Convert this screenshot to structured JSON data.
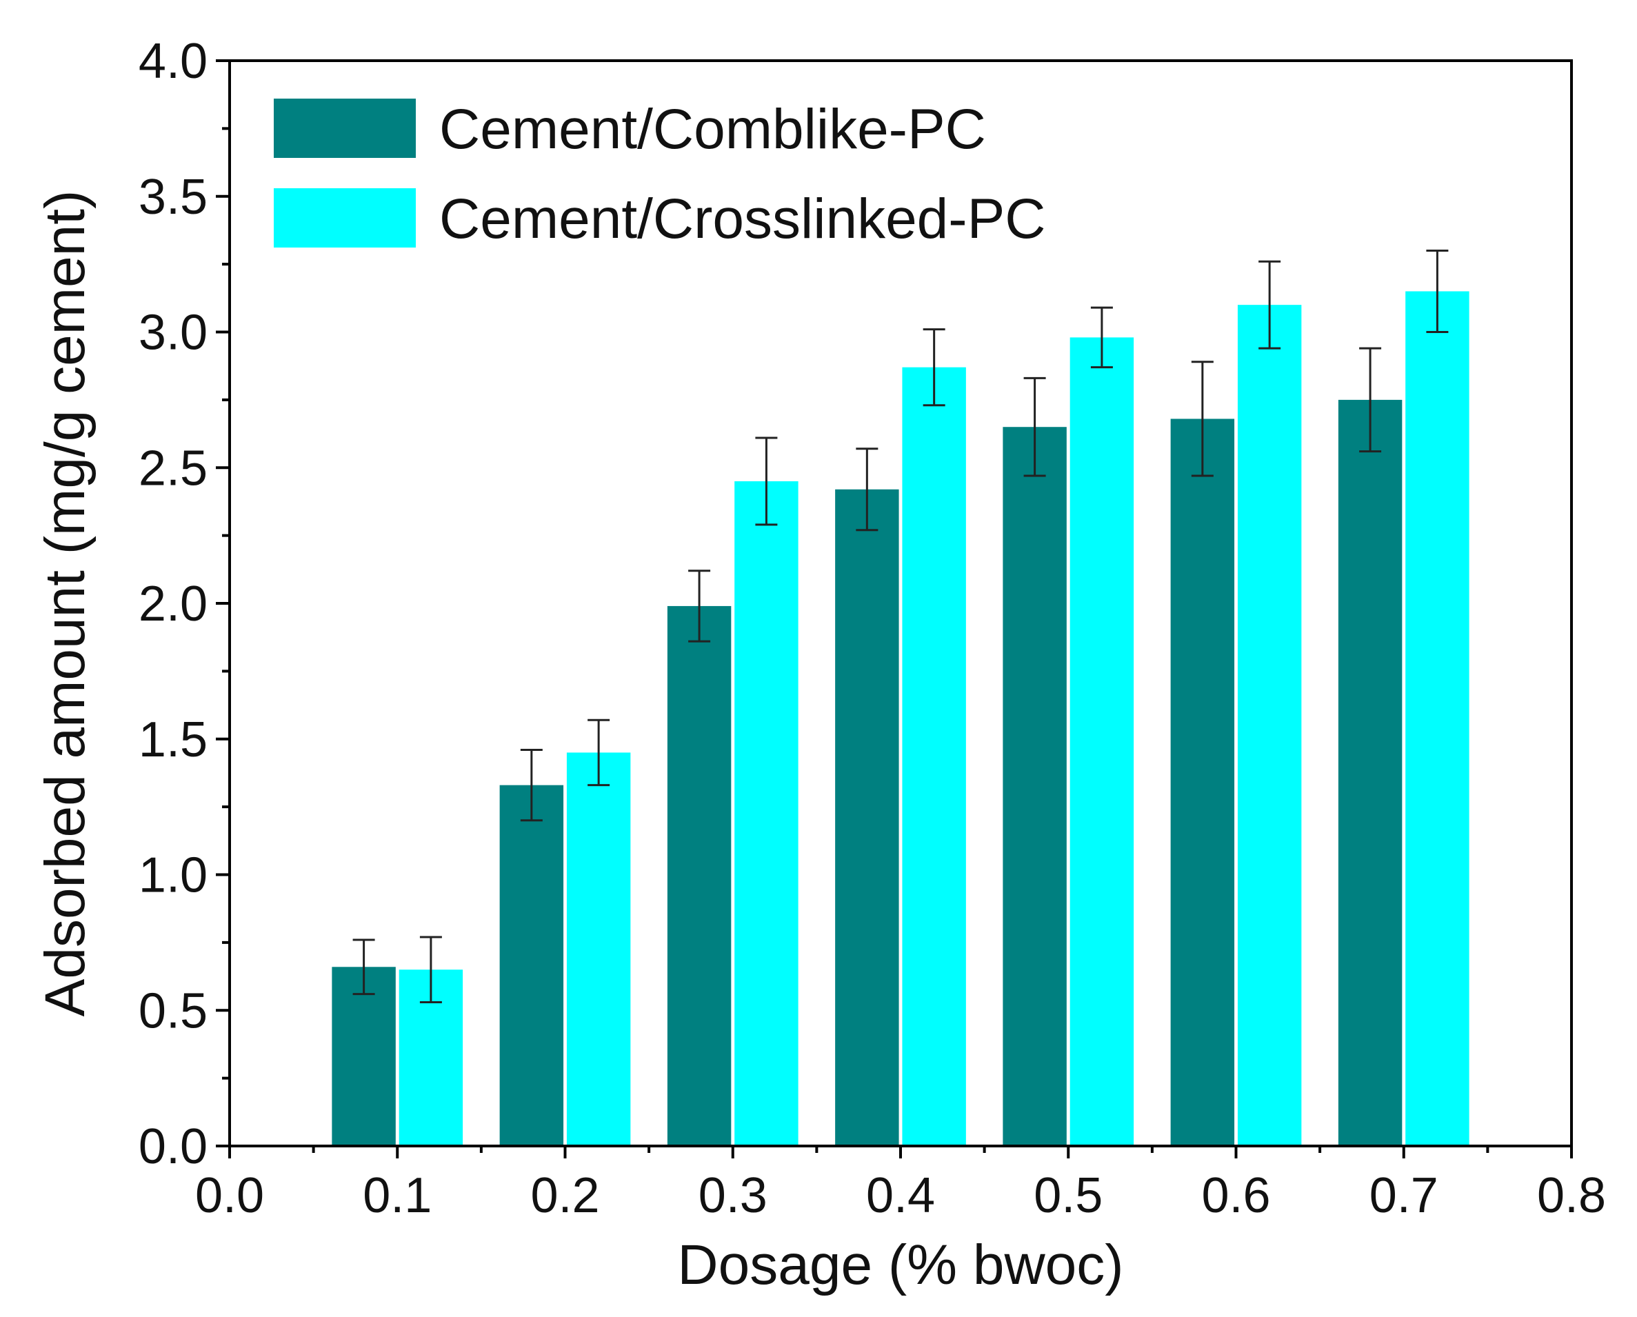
{
  "chart_data": {
    "type": "bar",
    "title": "",
    "xlabel": "Dosage (% bwoc)",
    "ylabel": "Adsorbed amount (mg/g cement)",
    "xlim": [
      0.0,
      0.8
    ],
    "ylim": [
      0.0,
      4.0
    ],
    "x": [
      0.1,
      0.2,
      0.3,
      0.4,
      0.5,
      0.6,
      0.7
    ],
    "x_ticks": [
      "0.0",
      "0.1",
      "0.2",
      "0.3",
      "0.4",
      "0.5",
      "0.6",
      "0.7",
      "0.8"
    ],
    "x_tick_values": [
      0.0,
      0.1,
      0.2,
      0.3,
      0.4,
      0.5,
      0.6,
      0.7,
      0.8
    ],
    "y_ticks": [
      "0.0",
      "0.5",
      "1.0",
      "1.5",
      "2.0",
      "2.5",
      "3.0",
      "3.5",
      "4.0"
    ],
    "y_tick_values": [
      0.0,
      0.5,
      1.0,
      1.5,
      2.0,
      2.5,
      3.0,
      3.5,
      4.0
    ],
    "bar_width": 0.038,
    "legend_position": "top-left",
    "series": [
      {
        "name": "Cement/Comblike-PC",
        "color": "#008080",
        "offset": -0.02,
        "values": [
          0.66,
          1.33,
          1.99,
          2.42,
          2.65,
          2.68,
          2.75
        ],
        "errors": [
          0.1,
          0.13,
          0.13,
          0.15,
          0.18,
          0.21,
          0.19
        ]
      },
      {
        "name": "Cement/Crosslinked-PC",
        "color": "#00FFFF",
        "offset": 0.02,
        "values": [
          0.65,
          1.45,
          2.45,
          2.87,
          2.98,
          3.1,
          3.15
        ],
        "errors": [
          0.12,
          0.12,
          0.16,
          0.14,
          0.11,
          0.16,
          0.15
        ]
      }
    ]
  }
}
